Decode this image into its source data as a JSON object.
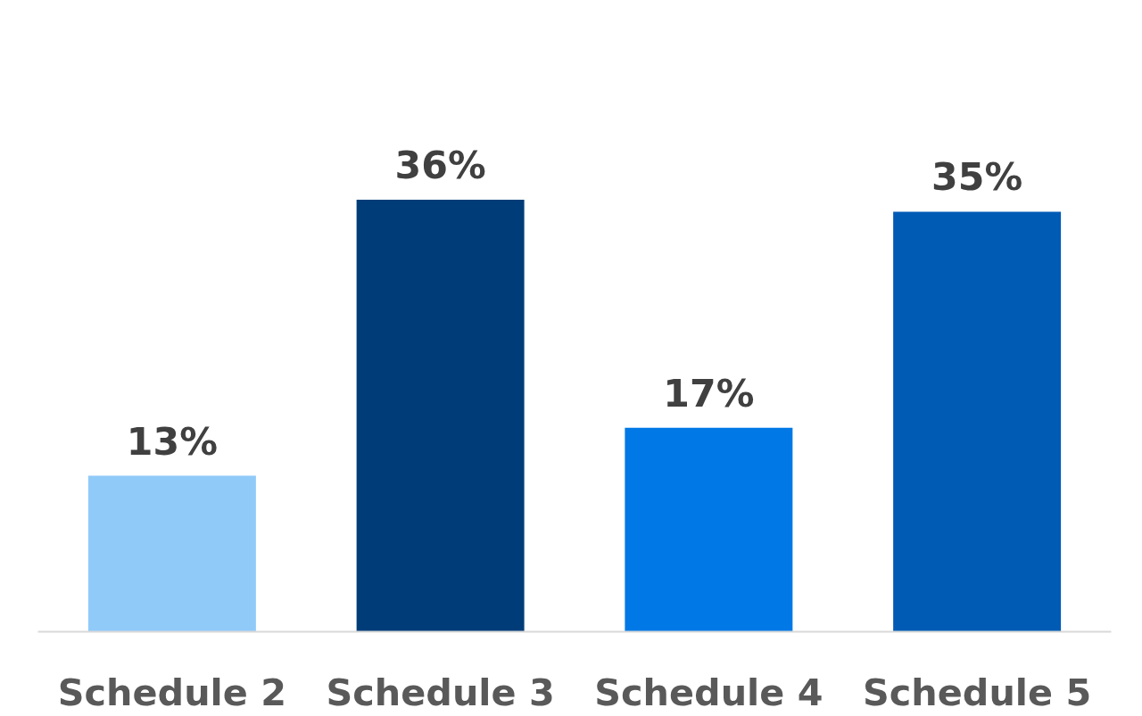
{
  "chart_data": {
    "type": "bar",
    "categories": [
      "Schedule 2",
      "Schedule 3",
      "Schedule 4",
      "Schedule 5"
    ],
    "values": [
      13,
      36,
      17,
      35
    ],
    "colors": [
      "#90caf9",
      "#003d78",
      "#0079e6",
      "#005bb5"
    ],
    "value_labels": [
      "13%",
      "36%",
      "17%",
      "35%"
    ]
  }
}
